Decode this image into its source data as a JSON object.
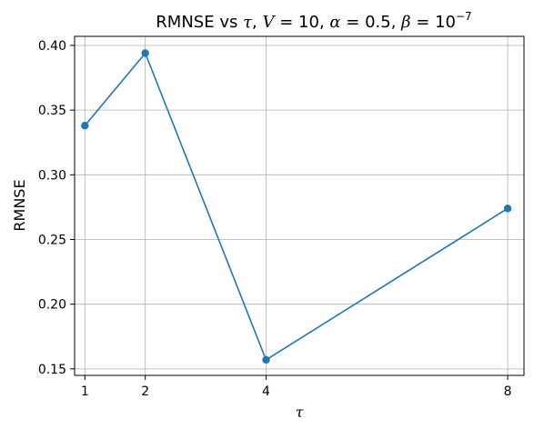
{
  "chart_data": {
    "type": "line",
    "title": {
      "prefix": "RMNSE vs ",
      "tau": "τ",
      "sep1": ", ",
      "v_sym": "V",
      "v_eq": " = 10",
      "sep2": ", ",
      "alpha_sym": "α",
      "alpha_eq": " = 0.5",
      "sep3": ", ",
      "beta_sym": "β",
      "beta_eq": " = 10",
      "beta_exp": "−7"
    },
    "xlabel": "τ",
    "ylabel": "RMNSE",
    "xlim": [
      0.83,
      8.27
    ],
    "ylim": [
      0.145,
      0.407
    ],
    "x_ticks": [
      1,
      2,
      4,
      8
    ],
    "x_tick_labels": [
      "1",
      "2",
      "4",
      "8"
    ],
    "y_ticks": [
      0.15,
      0.2,
      0.25,
      0.3,
      0.35,
      0.4
    ],
    "y_tick_labels": [
      "0.15",
      "0.20",
      "0.25",
      "0.30",
      "0.35",
      "0.40"
    ],
    "grid": true,
    "series": [
      {
        "x": [
          1,
          2,
          4,
          8
        ],
        "values": [
          0.338,
          0.394,
          0.157,
          0.274
        ],
        "color": "#1f77b4",
        "marker": "circle"
      }
    ]
  }
}
